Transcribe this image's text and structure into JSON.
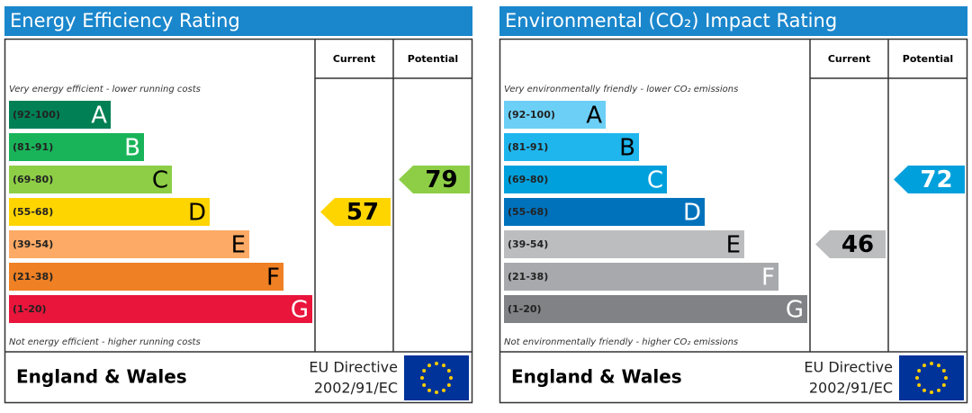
{
  "panels": [
    {
      "title": "Energy Efficiency Rating",
      "col_current": "Current",
      "col_potential": "Potential",
      "top_note": "Very energy efficient - lower running costs",
      "bottom_note": "Not energy efficient - higher running costs",
      "bands": [
        {
          "range": "(92-100)",
          "letter": "A",
          "color": "#008054",
          "text_color": "#ffffff"
        },
        {
          "range": "(81-91)",
          "letter": "B",
          "color": "#19b459",
          "text_color": "#ffffff"
        },
        {
          "range": "(69-80)",
          "letter": "C",
          "color": "#8dce46",
          "text_color": "#000000"
        },
        {
          "range": "(55-68)",
          "letter": "D",
          "color": "#ffd500",
          "text_color": "#000000"
        },
        {
          "range": "(39-54)",
          "letter": "E",
          "color": "#fcaa65",
          "text_color": "#000000"
        },
        {
          "range": "(21-38)",
          "letter": "F",
          "color": "#ef8023",
          "text_color": "#000000"
        },
        {
          "range": "(1-20)",
          "letter": "G",
          "color": "#e9153b",
          "text_color": "#ffffff"
        }
      ],
      "current": 57,
      "potential": 79,
      "footer": "England & Wales",
      "directive": "EU Directive",
      "directive_code": "2002/91/EC"
    },
    {
      "title": "Environmental (CO₂) Impact Rating",
      "col_current": "Current",
      "col_potential": "Potential",
      "top_note": "Very environmentally friendly - lower CO₂ emissions",
      "bottom_note": "Not environmentally friendly - higher CO₂ emissions",
      "bands": [
        {
          "range": "(92-100)",
          "letter": "A",
          "color": "#6ccff6",
          "text_color": "#000000"
        },
        {
          "range": "(81-91)",
          "letter": "B",
          "color": "#1fb6ee",
          "text_color": "#000000"
        },
        {
          "range": "(69-80)",
          "letter": "C",
          "color": "#00a0dc",
          "text_color": "#ffffff"
        },
        {
          "range": "(55-68)",
          "letter": "D",
          "color": "#0072bc",
          "text_color": "#ffffff"
        },
        {
          "range": "(39-54)",
          "letter": "E",
          "color": "#bbbdbf",
          "text_color": "#000000"
        },
        {
          "range": "(21-38)",
          "letter": "F",
          "color": "#a7a9ac",
          "text_color": "#ffffff"
        },
        {
          "range": "(1-20)",
          "letter": "G",
          "color": "#808285",
          "text_color": "#ffffff"
        }
      ],
      "current": 46,
      "potential": 72,
      "footer": "England & Wales",
      "directive": "EU Directive",
      "directive_code": "2002/91/EC"
    }
  ]
}
